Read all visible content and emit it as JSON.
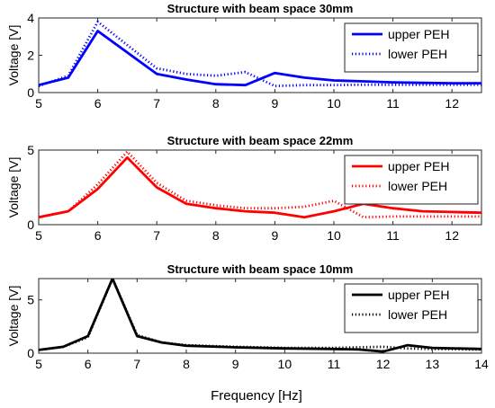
{
  "figure": {
    "xlabel": "Frequency [Hz]"
  },
  "chart_data": [
    {
      "type": "line",
      "title": "Structure with beam space 30mm",
      "xlabel": "",
      "ylabel": "Voltage [V]",
      "xlim": [
        5,
        12.5
      ],
      "ylim": [
        0,
        4
      ],
      "xticks": [
        "5",
        "6",
        "7",
        "8",
        "9",
        "10",
        "11",
        "12"
      ],
      "yticks": [
        "0",
        "2",
        "4"
      ],
      "color": "#0000ff",
      "legend": "top-right",
      "grid": false,
      "series": [
        {
          "name": "upper PEH",
          "style": "solid",
          "x": [
            5,
            5.5,
            6,
            7,
            7.5,
            8,
            8.5,
            9,
            9.5,
            10,
            10.5,
            11,
            11.5,
            12,
            12.5
          ],
          "y": [
            0.4,
            0.8,
            3.3,
            1.0,
            0.7,
            0.45,
            0.4,
            1.05,
            0.8,
            0.65,
            0.6,
            0.55,
            0.52,
            0.5,
            0.5
          ]
        },
        {
          "name": "lower PEH",
          "style": "dotted",
          "x": [
            5,
            5.5,
            6,
            7,
            7.5,
            8,
            8.5,
            9,
            9.5,
            10,
            10.5,
            11,
            11.5,
            12,
            12.5
          ],
          "y": [
            0.35,
            0.9,
            3.8,
            1.3,
            1.0,
            0.9,
            1.1,
            0.35,
            0.4,
            0.4,
            0.42,
            0.42,
            0.42,
            0.42,
            0.42
          ]
        }
      ]
    },
    {
      "type": "line",
      "title": "Structure with beam space 22mm",
      "xlabel": "",
      "ylabel": "Voltage [V]",
      "xlim": [
        5,
        12.5
      ],
      "ylim": [
        0,
        5
      ],
      "xticks": [
        "5",
        "6",
        "7",
        "8",
        "9",
        "10",
        "11",
        "12"
      ],
      "yticks": [
        "0",
        "5"
      ],
      "color": "#ff0000",
      "legend": "top-right",
      "grid": false,
      "series": [
        {
          "name": "upper PEH",
          "style": "solid",
          "x": [
            5,
            5.5,
            6,
            6.5,
            7,
            7.5,
            8,
            8.5,
            9,
            9.5,
            10,
            10.5,
            11,
            11.5,
            12,
            12.5
          ],
          "y": [
            0.5,
            0.9,
            2.4,
            4.5,
            2.5,
            1.4,
            1.1,
            0.9,
            0.8,
            0.5,
            0.9,
            1.4,
            1.1,
            0.9,
            0.85,
            0.8
          ]
        },
        {
          "name": "lower PEH",
          "style": "dotted",
          "x": [
            5,
            5.5,
            6,
            6.5,
            7,
            7.5,
            8,
            8.5,
            9,
            9.5,
            10,
            10.5,
            11,
            11.5,
            12,
            12.5
          ],
          "y": [
            0.5,
            0.9,
            2.7,
            4.9,
            2.8,
            1.6,
            1.3,
            1.1,
            1.1,
            1.2,
            1.6,
            0.5,
            0.55,
            0.55,
            0.55,
            0.55
          ]
        }
      ]
    },
    {
      "type": "line",
      "title": "Structure with beam space 10mm",
      "xlabel": "Frequency [Hz]",
      "ylabel": "Voltage [V]",
      "xlim": [
        5,
        14
      ],
      "ylim": [
        0,
        7
      ],
      "xticks": [
        "5",
        "6",
        "7",
        "8",
        "9",
        "10",
        "11",
        "12",
        "13",
        "14"
      ],
      "yticks": [
        "0",
        "5"
      ],
      "color": "#000000",
      "legend": "top-right",
      "grid": false,
      "series": [
        {
          "name": "upper PEH",
          "style": "solid",
          "x": [
            5,
            5.5,
            6,
            6.5,
            7,
            7.5,
            8,
            9,
            10,
            11,
            11.5,
            12,
            12.5,
            13,
            14
          ],
          "y": [
            0.3,
            0.6,
            1.6,
            7.0,
            1.6,
            1.0,
            0.7,
            0.55,
            0.45,
            0.4,
            0.35,
            0.15,
            0.75,
            0.5,
            0.4
          ]
        },
        {
          "name": "lower PEH",
          "style": "dotted",
          "x": [
            5,
            5.5,
            6,
            6.5,
            7,
            7.5,
            8,
            9,
            10,
            11,
            11.5,
            12,
            12.5,
            13,
            14
          ],
          "y": [
            0.3,
            0.6,
            1.5,
            7.0,
            1.7,
            1.0,
            0.75,
            0.6,
            0.5,
            0.5,
            0.55,
            0.6,
            0.45,
            0.4,
            0.35
          ]
        }
      ]
    }
  ]
}
